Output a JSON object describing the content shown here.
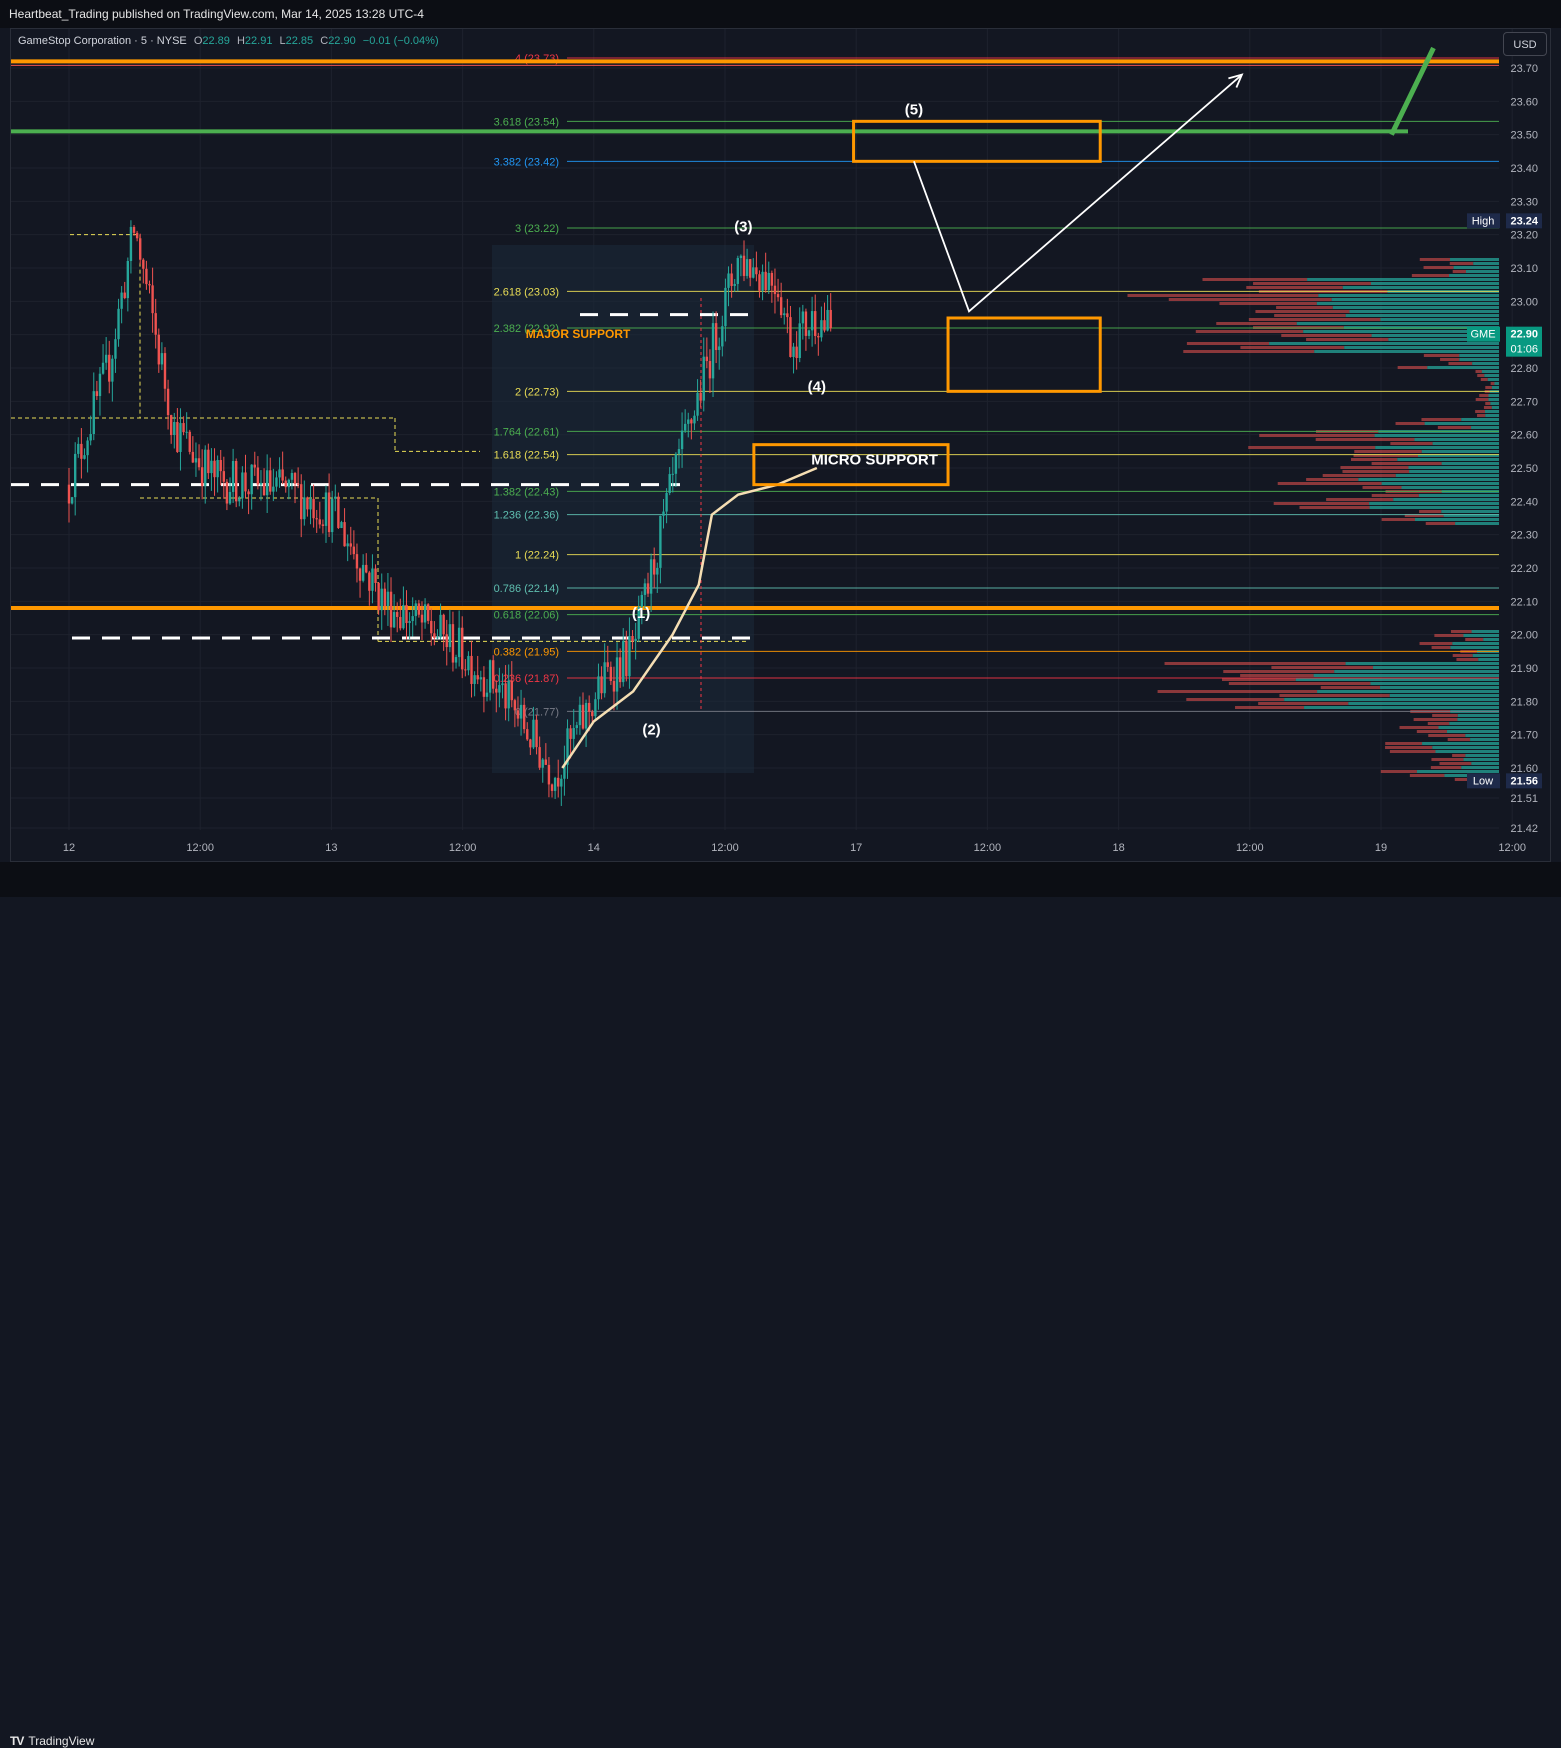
{
  "publisher": "Heartbeat_Trading published on TradingView.com, Mar 14, 2025 13:28 UTC-4",
  "legend": {
    "name": "GameStop Corporation · 5 · NYSE",
    "open_label": "O",
    "open": "22.89",
    "high_label": "H",
    "high": "22.91",
    "low_label": "L",
    "low": "22.85",
    "close_label": "C",
    "close": "22.90",
    "change": "−0.01 (−0.04%)"
  },
  "currency": "USD",
  "brand": "TradingView",
  "colors": {
    "up": "#26a69a",
    "down": "#ef5350",
    "orange": "#ff9800",
    "green_line": "#4caf50",
    "vwap": "#f5deb3",
    "fib_yellow": "#e9dd55",
    "fib_green": "#4caf50",
    "fib_teal": "#5fbfb0",
    "fib_blue": "#2196f3",
    "fib_red": "#f23645"
  },
  "chart_data": {
    "type": "candlestick",
    "symbol": "GME",
    "interval": "5",
    "ylim": [
      21.42,
      23.78
    ],
    "y_ticks": [
      "23.70",
      "23.60",
      "23.50",
      "23.40",
      "23.30",
      "23.20",
      "23.10",
      "23.00",
      "22.90",
      "22.80",
      "22.70",
      "22.60",
      "22.50",
      "22.40",
      "22.30",
      "22.20",
      "22.10",
      "22.00",
      "21.90",
      "21.80",
      "21.70",
      "21.60",
      "21.51",
      "21.42"
    ],
    "x_ticks": [
      "12",
      "12:00",
      "13",
      "12:00",
      "14",
      "12:00",
      "17",
      "12:00",
      "18",
      "12:00",
      "19",
      "12:00"
    ],
    "price_path": [
      {
        "t": 0.0,
        "p": 22.45
      },
      {
        "t": 0.15,
        "p": 22.8
      },
      {
        "t": 0.25,
        "p": 23.22
      },
      {
        "t": 0.4,
        "p": 22.62
      },
      {
        "t": 0.55,
        "p": 22.47
      },
      {
        "t": 0.85,
        "p": 22.43
      },
      {
        "t": 1.0,
        "p": 22.37
      },
      {
        "t": 1.2,
        "p": 22.1
      },
      {
        "t": 1.45,
        "p": 21.98
      },
      {
        "t": 1.65,
        "p": 21.83
      },
      {
        "t": 1.85,
        "p": 21.58
      },
      {
        "t": 2.05,
        "p": 21.88
      },
      {
        "t": 2.15,
        "p": 21.95
      },
      {
        "t": 2.3,
        "p": 22.45
      },
      {
        "t": 2.55,
        "p": 23.13
      },
      {
        "t": 2.7,
        "p": 23.06
      },
      {
        "t": 2.75,
        "p": 22.88
      },
      {
        "t": 2.85,
        "p": 22.96
      },
      {
        "t": 2.91,
        "p": 22.9
      }
    ],
    "vwap": [
      {
        "t": 1.88,
        "p": 21.6
      },
      {
        "t": 2.0,
        "p": 21.74
      },
      {
        "t": 2.15,
        "p": 21.83
      },
      {
        "t": 2.3,
        "p": 22.0
      },
      {
        "t": 2.4,
        "p": 22.15
      },
      {
        "t": 2.45,
        "p": 22.36
      },
      {
        "t": 2.55,
        "p": 22.42
      },
      {
        "t": 2.7,
        "p": 22.45
      },
      {
        "t": 2.85,
        "p": 22.5
      }
    ],
    "fib_levels": [
      {
        "label": "4 (23.73)",
        "value": 23.73,
        "color": "#f23645"
      },
      {
        "label": "3.618 (23.54)",
        "value": 23.54,
        "color": "#4caf50"
      },
      {
        "label": "3.382 (23.42)",
        "value": 23.42,
        "color": "#2196f3"
      },
      {
        "label": "3 (23.22)",
        "value": 23.22,
        "color": "#4caf50"
      },
      {
        "label": "2.618 (23.03)",
        "value": 23.03,
        "color": "#e9dd55"
      },
      {
        "label": "2.382 (22.92)",
        "value": 22.92,
        "color": "#4caf50"
      },
      {
        "label": "2 (22.73)",
        "value": 22.73,
        "color": "#e9dd55"
      },
      {
        "label": "1.764 (22.61)",
        "value": 22.61,
        "color": "#4caf50"
      },
      {
        "label": "1.618 (22.54)",
        "value": 22.54,
        "color": "#e9dd55"
      },
      {
        "label": "1.382 (22.43)",
        "value": 22.43,
        "color": "#4caf50"
      },
      {
        "label": "1.236 (22.36)",
        "value": 22.36,
        "color": "#5fbfb0"
      },
      {
        "label": "1 (22.24)",
        "value": 22.24,
        "color": "#e9dd55"
      },
      {
        "label": "0.786 (22.14)",
        "value": 22.14,
        "color": "#5fbfb0"
      },
      {
        "label": "0.618 (22.06)",
        "value": 22.06,
        "color": "#4caf50"
      },
      {
        "label": "0.382 (21.95)",
        "value": 21.95,
        "color": "#ff9800"
      },
      {
        "label": "0.236 (21.87)",
        "value": 21.87,
        "color": "#f23645"
      },
      {
        "label": "0 (21.77)",
        "value": 21.77,
        "color": "#787b86"
      }
    ],
    "horizontal_lines": [
      {
        "value": 23.72,
        "color": "#ff9800",
        "style": "thick"
      },
      {
        "value": 23.51,
        "color": "#4caf50",
        "style": "thick"
      },
      {
        "value": 22.08,
        "color": "#ff9800",
        "style": "thick"
      },
      {
        "value": 22.45,
        "color": "#ffffff",
        "style": "dashed"
      },
      {
        "value": 21.99,
        "color": "#ffffff",
        "style": "dashed"
      },
      {
        "value": 22.96,
        "color": "#ffffff",
        "style": "dashed"
      }
    ],
    "wave_labels": [
      {
        "text": "(1)",
        "t": 2.18,
        "p": 22.05
      },
      {
        "text": "(2)",
        "t": 2.22,
        "p": 21.7
      },
      {
        "text": "(3)",
        "t": 2.57,
        "p": 23.21
      },
      {
        "text": "(4)",
        "t": 2.85,
        "p": 22.73
      },
      {
        "text": "(5)",
        "t": 3.22,
        "p": 23.56
      }
    ],
    "annotations": [
      {
        "text": "MAJOR SUPPORT",
        "t": 1.94,
        "p": 22.89
      },
      {
        "text": "MICRO SUPPORT",
        "t": 3.07,
        "p": 22.51
      }
    ],
    "projection_path": [
      {
        "t": 3.22,
        "p": 23.42
      },
      {
        "t": 3.43,
        "p": 22.97
      },
      {
        "t": 4.47,
        "p": 23.68
      }
    ],
    "target_boxes": [
      {
        "t0": 2.99,
        "t1": 3.93,
        "p0": 23.42,
        "p1": 23.54
      },
      {
        "t0": 3.35,
        "t1": 3.93,
        "p0": 22.73,
        "p1": 22.95
      },
      {
        "t0": 2.61,
        "t1": 3.35,
        "p0": 22.45,
        "p1": 22.57
      }
    ],
    "trendline": [
      {
        "t": 5.04,
        "p": 23.5
      },
      {
        "t": 5.2,
        "p": 23.76
      }
    ],
    "price_badges": [
      {
        "label": "High",
        "value": "23.24",
        "p": 23.24,
        "bg": "#1e2a4a"
      },
      {
        "label": "GME",
        "value": "22.90",
        "countdown": "01:06",
        "p": 22.9,
        "bg": "#089981"
      },
      {
        "label": "Low",
        "value": "21.56",
        "p": 21.56,
        "bg": "#1e2a4a"
      }
    ]
  }
}
